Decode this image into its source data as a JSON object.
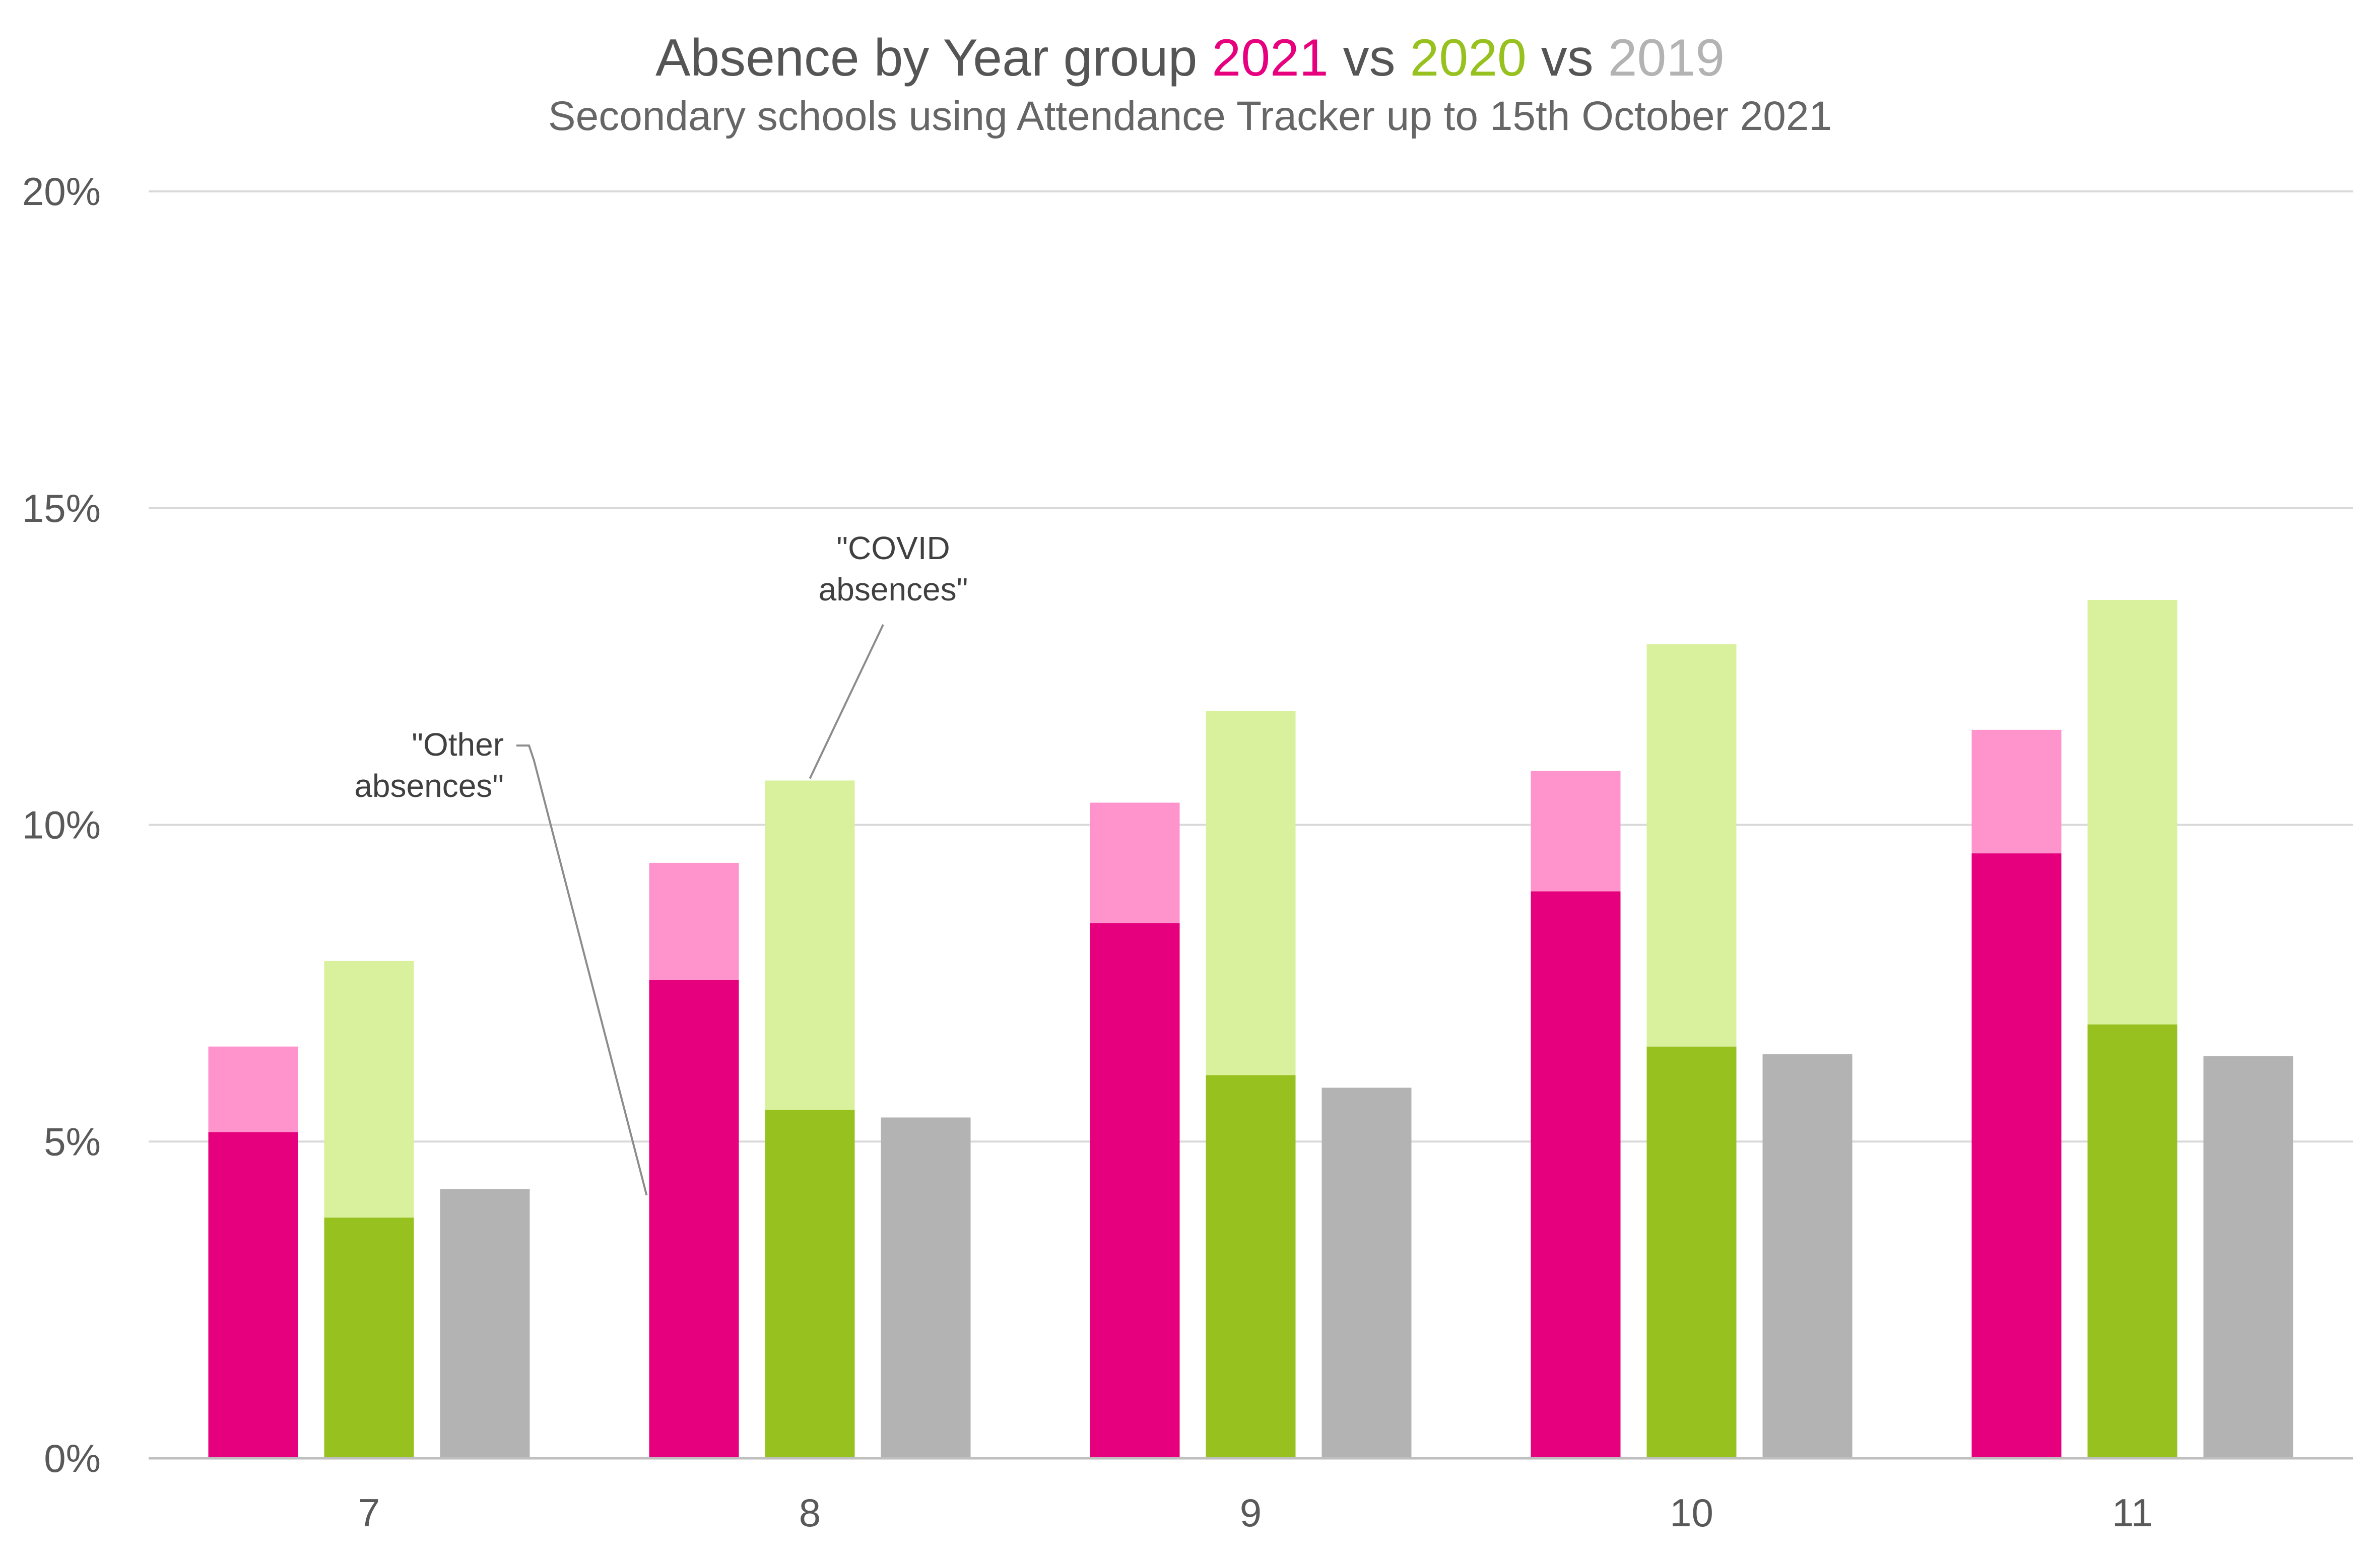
{
  "chart_data": {
    "type": "bar",
    "title": {
      "prefix": "Absence by Year group ",
      "series_2021": "2021",
      "vs1": " vs ",
      "series_2020": "2020",
      "vs2": " vs ",
      "series_2019": "2019"
    },
    "subtitle": "Secondary schools using Attendance Tracker up to 15th October 2021",
    "xlabel": "",
    "ylabel": "",
    "ylim": [
      0,
      20
    ],
    "yticks": [
      {
        "value": 0,
        "label": "0%"
      },
      {
        "value": 5,
        "label": "5%"
      },
      {
        "value": 10,
        "label": "10%"
      },
      {
        "value": 15,
        "label": "15%"
      },
      {
        "value": 20,
        "label": "20%"
      }
    ],
    "grid": true,
    "legend": "none",
    "categories": [
      "7",
      "8",
      "9",
      "10",
      "11"
    ],
    "series": [
      {
        "name": "2021",
        "stacked": true,
        "color_other": "#E6007E",
        "color_covid": "#FF93CC",
        "other": [
          5.15,
          7.55,
          8.45,
          8.95,
          9.55
        ],
        "covid": [
          1.35,
          1.85,
          1.9,
          1.9,
          1.95
        ]
      },
      {
        "name": "2020",
        "stacked": true,
        "color_other": "#97C11F",
        "color_covid": "#D9F09C",
        "other": [
          3.8,
          5.5,
          6.05,
          6.5,
          6.85
        ],
        "covid": [
          4.05,
          5.2,
          5.75,
          6.35,
          6.7
        ]
      },
      {
        "name": "2019",
        "stacked": false,
        "color_other": "#B3B3B3",
        "other": [
          4.25,
          5.38,
          5.85,
          6.38,
          6.35
        ]
      }
    ],
    "annotations": [
      {
        "id": "other",
        "lines": [
          "\"Other",
          "absences\""
        ]
      },
      {
        "id": "covid",
        "lines": [
          "\"COVID",
          "absences\""
        ]
      }
    ]
  },
  "colors": {
    "title": "#555555",
    "accent_2021": "#E6007E",
    "accent_2020": "#97C11F",
    "accent_2019": "#B3B3B3"
  }
}
